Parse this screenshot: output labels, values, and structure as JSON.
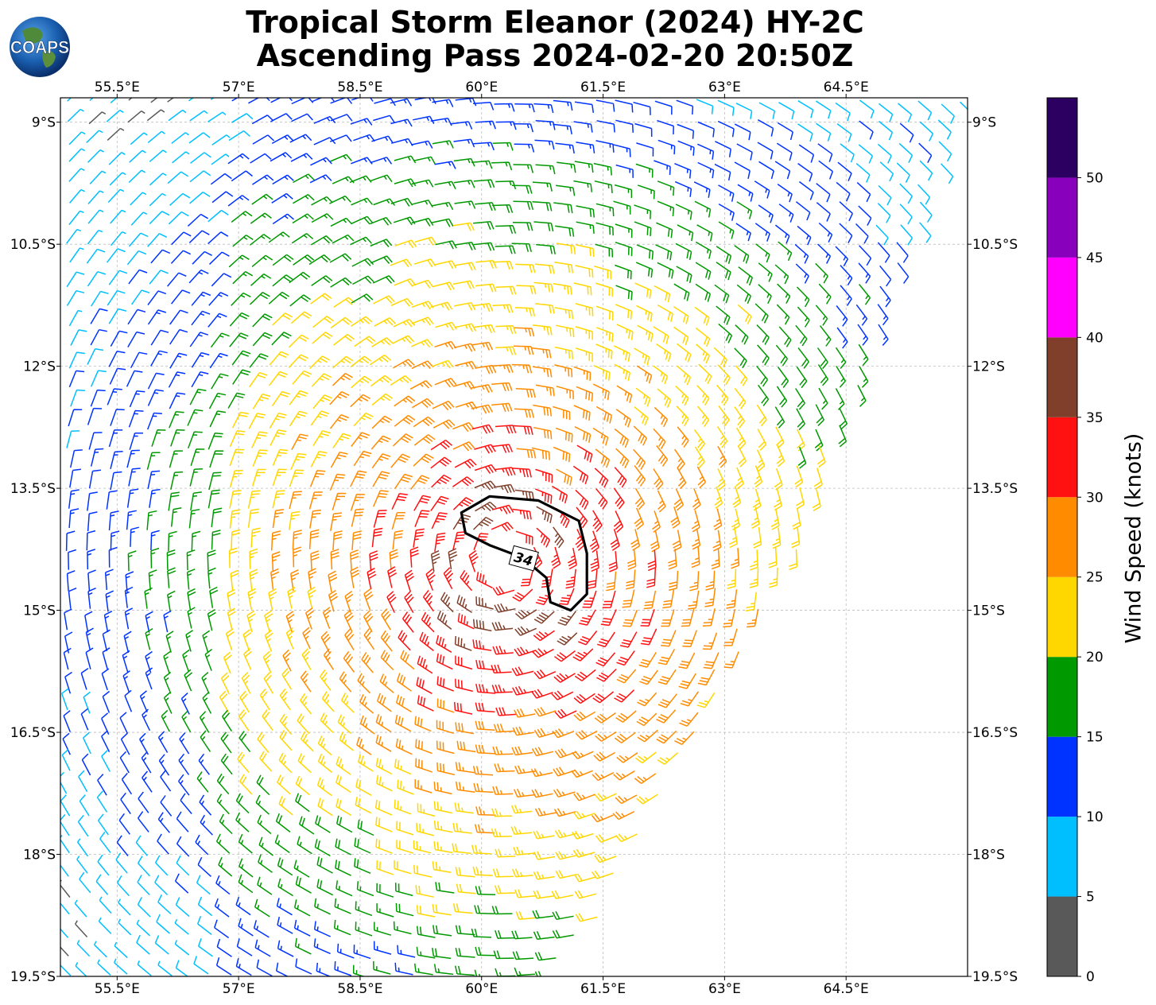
{
  "title_line1": "Tropical Storm Eleanor (2024) HY-2C",
  "title_line2": "Ascending Pass 2024-02-20 20:50Z",
  "logo_text": "COAPS",
  "colorbar": {
    "label": "Wind Speed (knots)",
    "ticks": [
      "0",
      "5",
      "10",
      "15",
      "20",
      "25",
      "30",
      "35",
      "40",
      "45",
      "50"
    ],
    "levels": [
      {
        "min": 0,
        "max": 5,
        "color": "#595959"
      },
      {
        "min": 5,
        "max": 10,
        "color": "#00bfff"
      },
      {
        "min": 10,
        "max": 15,
        "color": "#0033ff"
      },
      {
        "min": 15,
        "max": 20,
        "color": "#009900"
      },
      {
        "min": 20,
        "max": 25,
        "color": "#ffd700"
      },
      {
        "min": 25,
        "max": 30,
        "color": "#ff8c00"
      },
      {
        "min": 30,
        "max": 35,
        "color": "#ff1111"
      },
      {
        "min": 35,
        "max": 40,
        "color": "#7f3f2a"
      },
      {
        "min": 40,
        "max": 45,
        "color": "#ff00ff"
      },
      {
        "min": 45,
        "max": 50,
        "color": "#8800bb"
      },
      {
        "min": 50,
        "max": 55,
        "color": "#2b0060"
      }
    ]
  },
  "chart_data": {
    "type": "wind-barb map",
    "xlim": [
      54.8,
      66.0
    ],
    "ylim": [
      -19.5,
      -8.7
    ],
    "x_ticks": [
      55.5,
      57,
      58.5,
      60,
      61.5,
      63,
      64.5
    ],
    "x_tick_labels": [
      "55.5°E",
      "57°E",
      "58.5°E",
      "60°E",
      "61.5°E",
      "63°E",
      "64.5°E"
    ],
    "y_ticks": [
      -9,
      -10.5,
      -12,
      -13.5,
      -15,
      -16.5,
      -18,
      -19.5
    ],
    "y_tick_labels": [
      "9°S",
      "10.5°S",
      "12°S",
      "13.5°S",
      "15°S",
      "16.5°S",
      "18°S",
      "19.5°S"
    ],
    "grid": true,
    "storm_center": [
      60.3,
      -14.4
    ],
    "contour_label": "34",
    "contour_level_knots": 34,
    "swath_edge": [
      [
        66.0,
        -8.7
      ],
      [
        63.9,
        -14.3
      ],
      [
        61.0,
        -19.5
      ]
    ]
  }
}
